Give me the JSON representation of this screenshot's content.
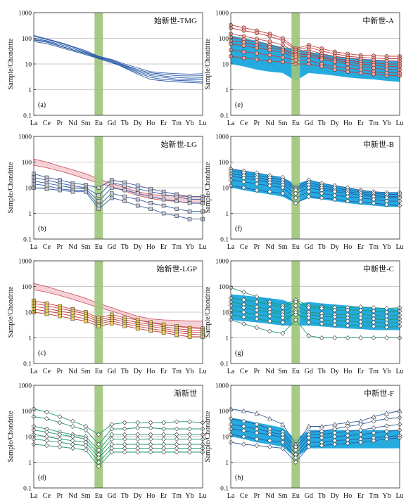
{
  "figure": {
    "ylabel": "Sample/Chondrite",
    "xcategories": [
      "La",
      "Ce",
      "Pr",
      "Nd",
      "Sm",
      "Eu",
      "Gd",
      "Tb",
      "Dy",
      "Ho",
      "Er",
      "Tm",
      "Yb",
      "Lu"
    ],
    "yticks": [
      "1000",
      "100",
      "10",
      "1",
      "0.1"
    ],
    "colors": {
      "eu_band": "#9dc47a",
      "ref_pink_fill": "#f2c2c8",
      "ref_pink_line": "#c84a5a",
      "ref_blue_fill": "#1aa6dd",
      "line_green": "#199a6a",
      "line_blue": "#2a5aa8",
      "line_red": "#c83a3a",
      "line_gray": "#555555"
    }
  },
  "chart_data": [
    {
      "type": "line",
      "panel": "(a)",
      "title": "始新世-TMG",
      "yscale": "log",
      "ylim": [
        0.1,
        1000
      ],
      "marker": "none",
      "color": "#2a5aa8",
      "series": [
        {
          "values": [
            130,
            95,
            70,
            48,
            33,
            20,
            15,
            10,
            7,
            5,
            4.5,
            4.2,
            4.0,
            4.2
          ]
        },
        {
          "values": [
            120,
            90,
            65,
            45,
            30,
            19,
            14,
            9,
            6,
            4.5,
            4,
            3.5,
            3.4,
            3.5
          ]
        },
        {
          "values": [
            100,
            80,
            58,
            40,
            28,
            18,
            13,
            8.5,
            5.5,
            4,
            3.4,
            3,
            2.8,
            2.9
          ]
        },
        {
          "values": [
            85,
            70,
            50,
            35,
            25,
            17,
            12,
            8,
            5,
            3.5,
            3,
            2.6,
            2.5,
            2.5
          ]
        },
        {
          "values": [
            75,
            62,
            45,
            32,
            23,
            16,
            11,
            7.5,
            4.5,
            3,
            2.5,
            2.3,
            2.2,
            2.1
          ]
        },
        {
          "values": [
            90,
            75,
            52,
            36,
            26,
            17,
            12,
            7,
            4,
            2.5,
            2.2,
            2,
            1.9,
            1.8
          ]
        }
      ]
    },
    {
      "type": "line",
      "panel": "(e)",
      "title": "中新世-A",
      "yscale": "log",
      "ylim": [
        0.1,
        1000
      ],
      "marker": "circle",
      "color": "#c83a3a",
      "reference_band": {
        "color": "#1aa6dd",
        "upper": [
          130,
          100,
          80,
          60,
          45,
          40,
          30,
          25,
          20,
          18,
          16,
          15,
          14,
          13
        ],
        "lower": [
          10,
          8,
          6,
          5,
          4.5,
          2.2,
          4.5,
          4,
          3.5,
          3,
          2.7,
          2.5,
          2.2,
          2.0
        ]
      },
      "series": [
        {
          "values": [
            330,
            260,
            200,
            150,
            100,
            40,
            55,
            40,
            30,
            25,
            22,
            21,
            20,
            20
          ]
        },
        {
          "values": [
            250,
            200,
            160,
            120,
            80,
            35,
            45,
            32,
            25,
            20,
            18,
            17,
            16,
            16
          ]
        },
        {
          "values": [
            150,
            120,
            95,
            75,
            55,
            30,
            35,
            25,
            20,
            17,
            15,
            14,
            13,
            13
          ]
        },
        {
          "values": [
            110,
            90,
            70,
            55,
            40,
            25,
            28,
            20,
            16,
            14,
            12,
            11,
            10,
            10
          ]
        },
        {
          "values": [
            80,
            70,
            55,
            45,
            35,
            22,
            24,
            17,
            14,
            12,
            10,
            9,
            8,
            8
          ]
        },
        {
          "values": [
            60,
            52,
            42,
            35,
            28,
            18,
            20,
            15,
            12,
            10,
            8,
            7,
            6,
            6
          ]
        },
        {
          "values": [
            35,
            30,
            26,
            22,
            18,
            14,
            14,
            10,
            8,
            7,
            6,
            5,
            4.5,
            4.5
          ]
        },
        {
          "values": [
            20,
            17,
            15,
            13,
            12,
            10,
            10,
            8,
            6,
            5,
            4.5,
            4,
            3.5,
            3.5
          ]
        }
      ]
    },
    {
      "type": "line",
      "panel": "(b)",
      "title": "始新世-LG",
      "yscale": "log",
      "ylim": [
        0.1,
        1000
      ],
      "marker": "square",
      "color": "#2a5aa8",
      "reference_band": {
        "color": "#f2c2c8",
        "upper": [
          130,
          100,
          70,
          50,
          35,
          22,
          15,
          10,
          7,
          5.5,
          5,
          4.8,
          4.5,
          4.5
        ],
        "lower": [
          75,
          60,
          45,
          32,
          22,
          15,
          11,
          7.5,
          5,
          3.8,
          3.2,
          2.9,
          2.6,
          2.4
        ]
      },
      "series": [
        {
          "values": [
            35,
            25,
            20,
            15,
            13,
            10,
            20,
            16,
            12,
            9,
            7,
            5.5,
            4.5,
            4.5
          ]
        },
        {
          "values": [
            25,
            20,
            15,
            12,
            10,
            5,
            16,
            12,
            9,
            7,
            5.5,
            4.5,
            3.5,
            3.5
          ]
        },
        {
          "values": [
            18,
            15,
            12,
            10,
            9,
            3,
            10,
            8,
            6,
            4.5,
            3.5,
            3,
            2.5,
            2.5
          ]
        },
        {
          "values": [
            14,
            12,
            9,
            8,
            8,
            2,
            6,
            4.5,
            3.5,
            2.5,
            2,
            1.5,
            1.2,
            1.2
          ]
        },
        {
          "values": [
            10,
            9,
            8,
            7,
            7,
            1.5,
            4,
            3,
            2,
            1.5,
            1,
            0.8,
            0.6,
            0.6
          ]
        }
      ]
    },
    {
      "type": "line",
      "panel": "(f)",
      "title": "中新世-B",
      "yscale": "log",
      "ylim": [
        0.1,
        1000
      ],
      "marker": "diamond",
      "color": "#2a5aa8",
      "reference_band": {
        "color": "#1aa6dd",
        "upper": [
          55,
          45,
          38,
          30,
          25,
          14,
          20,
          15,
          12,
          10,
          8,
          7,
          6.5,
          6.5
        ],
        "lower": [
          10,
          8,
          6.5,
          5.5,
          4.5,
          2.5,
          4,
          3.5,
          3,
          2.5,
          2.2,
          2,
          1.8,
          1.8
        ]
      },
      "series": [
        {
          "values": [
            55,
            45,
            38,
            30,
            25,
            10,
            20,
            15,
            12,
            10,
            8,
            7,
            6.5,
            6.5
          ]
        },
        {
          "values": [
            45,
            38,
            30,
            25,
            20,
            9,
            16,
            12,
            10,
            8,
            7,
            6,
            5.5,
            5.5
          ]
        },
        {
          "values": [
            35,
            30,
            25,
            20,
            16,
            8,
            13,
            10,
            8,
            7,
            6,
            5,
            4.5,
            4.5
          ]
        },
        {
          "values": [
            28,
            24,
            20,
            16,
            13,
            6,
            10,
            8,
            7,
            6,
            5,
            4.5,
            4,
            4
          ]
        },
        {
          "values": [
            20,
            17,
            14,
            12,
            10,
            4,
            7,
            6,
            5,
            4.5,
            4,
            3.5,
            3,
            3
          ]
        },
        {
          "values": [
            12,
            10,
            8,
            7,
            6,
            2.5,
            4.5,
            4,
            3.5,
            3,
            2.8,
            2.5,
            2.2,
            2
          ]
        }
      ]
    },
    {
      "type": "line",
      "panel": "(c)",
      "title": "始新世-LGP",
      "yscale": "log",
      "ylim": [
        0.1,
        1000
      ],
      "marker": "square",
      "color": "#c83a3a",
      "reference_band": {
        "color": "#f2c2c8",
        "upper": [
          130,
          100,
          70,
          50,
          35,
          22,
          15,
          10,
          7,
          5.5,
          5,
          4.8,
          4.5,
          4.5
        ],
        "lower": [
          75,
          60,
          45,
          32,
          22,
          15,
          11,
          7.5,
          5,
          3.8,
          3.2,
          2.9,
          2.6,
          2.4
        ]
      },
      "series": [
        {
          "values": [
            28,
            22,
            17,
            13,
            10,
            6,
            8,
            6,
            5,
            4,
            3.3,
            2.8,
            2.4,
            2.3
          ]
        },
        {
          "values": [
            22,
            18,
            14,
            11,
            8.5,
            5,
            6.5,
            5,
            4,
            3.3,
            2.7,
            2.3,
            2,
            1.9
          ]
        },
        {
          "values": [
            17,
            14,
            11,
            9,
            7,
            4.2,
            5.5,
            4.2,
            3.4,
            2.8,
            2.3,
            1.9,
            1.7,
            1.6
          ]
        },
        {
          "values": [
            13,
            11,
            9,
            7,
            5.5,
            3.5,
            4.5,
            3.5,
            2.8,
            2.3,
            1.9,
            1.6,
            1.4,
            1.3
          ]
        },
        {
          "values": [
            10,
            8.5,
            7,
            5.5,
            4.5,
            2.8,
            3.7,
            2.9,
            2.3,
            1.9,
            1.6,
            1.3,
            1.1,
            1.1
          ]
        }
      ]
    },
    {
      "type": "line",
      "panel": "(g)",
      "title": "中新世-C",
      "yscale": "log",
      "ylim": [
        0.1,
        1000
      ],
      "marker": "diamond",
      "color": "#199a6a",
      "reference_band": {
        "color": "#1aa6dd",
        "upper": [
          50,
          45,
          40,
          35,
          30,
          20,
          25,
          22,
          20,
          18,
          16,
          15,
          14,
          14
        ],
        "lower": [
          5,
          4.5,
          4,
          3.5,
          3,
          3,
          3,
          2.8,
          2.5,
          2.3,
          2.2,
          2,
          2,
          2
        ]
      },
      "series": [
        {
          "values": [
            90,
            60,
            40,
            25,
            18,
            30,
            18,
            16,
            15,
            15,
            16,
            15,
            14,
            15
          ]
        },
        {
          "values": [
            35,
            30,
            25,
            20,
            15,
            25,
            15,
            14,
            12,
            12,
            12,
            11,
            10,
            11
          ]
        },
        {
          "values": [
            25,
            20,
            16,
            13,
            10,
            18,
            10,
            9,
            8,
            8,
            8,
            7.5,
            7,
            7.5
          ]
        },
        {
          "values": [
            18,
            15,
            12,
            10,
            8,
            12,
            8,
            7,
            6.5,
            6,
            6,
            5.5,
            5,
            5.5
          ]
        },
        {
          "values": [
            12,
            10,
            8,
            7,
            6,
            8,
            6,
            5,
            4.5,
            4.5,
            4.2,
            4,
            3.8,
            4
          ]
        },
        {
          "values": [
            8,
            6.5,
            5.5,
            4.5,
            4,
            10,
            4,
            3.5,
            3.2,
            3,
            3,
            2.8,
            2.6,
            2.8
          ]
        },
        {
          "values": [
            5,
            3.5,
            2.5,
            1.8,
            1.5,
            5,
            1.2,
            1,
            1,
            1,
            1,
            1,
            1,
            1
          ]
        }
      ]
    },
    {
      "type": "line",
      "panel": "(d)",
      "title": "渐新世",
      "yscale": "log",
      "ylim": [
        0.1,
        1000
      ],
      "marker": "diamond",
      "color": "#199a6a",
      "series": [
        {
          "values": [
            120,
            90,
            60,
            40,
            25,
            12,
            30,
            35,
            35,
            35,
            35,
            38,
            38,
            35
          ]
        },
        {
          "values": [
            60,
            50,
            35,
            25,
            18,
            5,
            20,
            20,
            22,
            22,
            20,
            20,
            20,
            20
          ]
        },
        {
          "values": [
            25,
            20,
            15,
            12,
            10,
            3,
            12,
            12,
            12,
            12,
            12,
            12,
            12,
            12
          ]
        },
        {
          "values": [
            18,
            15,
            12,
            10,
            8,
            2,
            8,
            8,
            8,
            8,
            8,
            8,
            8,
            8
          ]
        },
        {
          "values": [
            12,
            10,
            8,
            7,
            6,
            1.5,
            5,
            5,
            5,
            5,
            5,
            5,
            5,
            5
          ]
        },
        {
          "values": [
            8,
            7,
            6,
            5,
            4.5,
            1,
            3.5,
            3.5,
            3.5,
            3.5,
            3.5,
            3.5,
            3.5,
            3.5
          ]
        },
        {
          "values": [
            5,
            4.5,
            4,
            3.5,
            3,
            0.7,
            2.5,
            2.5,
            2.5,
            2.5,
            2.5,
            2.5,
            2.5,
            2.5
          ]
        }
      ]
    },
    {
      "type": "line",
      "panel": "(h)",
      "title": "中新世-F",
      "yscale": "log",
      "ylim": [
        0.1,
        1000
      ],
      "marker": "diamond",
      "color": "#2a5aa8",
      "reference_band": {
        "color": "#1aa6dd",
        "upper": [
          55,
          45,
          35,
          28,
          22,
          8,
          18,
          18,
          18,
          18,
          18,
          18,
          18,
          18
        ],
        "lower": [
          10,
          8,
          6,
          5,
          4,
          1.5,
          3.5,
          3.5,
          3.5,
          3.5,
          3.5,
          3.5,
          3.5,
          3.5
        ]
      },
      "series": [
        {
          "values": [
            120,
            100,
            80,
            50,
            30,
            5,
            25,
            25,
            30,
            35,
            40,
            60,
            80,
            100
          ],
          "marker": "triangle"
        },
        {
          "values": [
            50,
            40,
            30,
            20,
            15,
            4,
            15,
            16,
            20,
            25,
            30,
            40,
            50,
            55
          ]
        },
        {
          "values": [
            30,
            25,
            20,
            15,
            12,
            3,
            12,
            12,
            14,
            16,
            18,
            22,
            26,
            30
          ]
        },
        {
          "values": [
            20,
            17,
            14,
            12,
            9,
            2,
            9,
            9,
            10,
            11,
            12,
            14,
            16,
            18
          ]
        },
        {
          "values": [
            12,
            10,
            8,
            7,
            6,
            1.5,
            6,
            6,
            7,
            7.5,
            8,
            9,
            10,
            11
          ]
        },
        {
          "values": [
            6,
            5,
            4.5,
            4,
            3.5,
            1,
            4,
            4.5,
            5,
            5.5,
            6,
            7,
            8,
            9
          ]
        }
      ]
    }
  ]
}
